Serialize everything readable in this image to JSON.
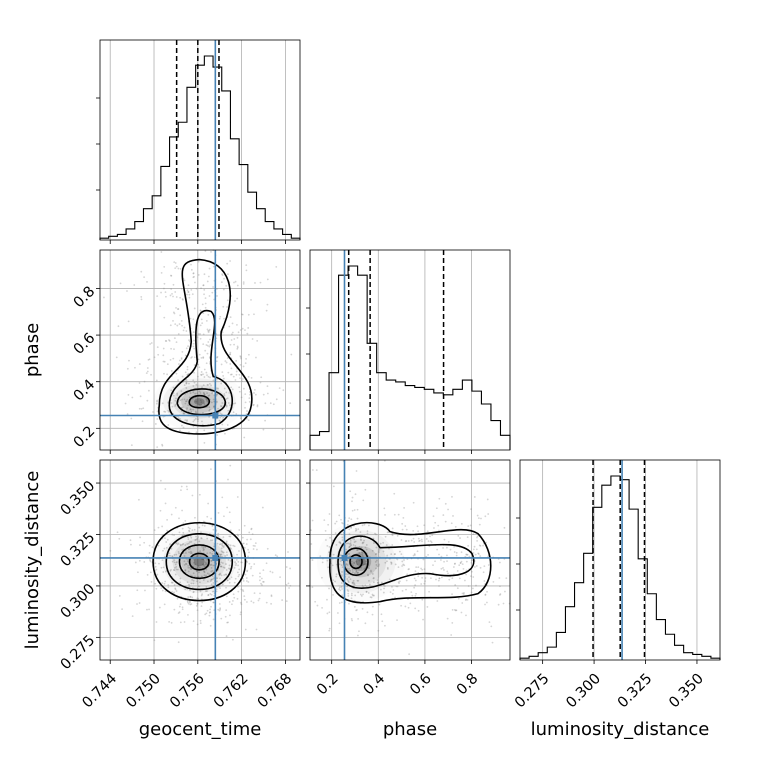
{
  "chart_data": {
    "type": "corner",
    "parameters": [
      "geocent_time",
      "phase",
      "luminosity_distance"
    ],
    "axis_labels": {
      "geocent_time": "geocent_time",
      "phase": "phase",
      "luminosity_distance": "luminosity_distance"
    },
    "ranges": {
      "geocent_time": [
        0.7426,
        0.77
      ],
      "phase": [
        0.107,
        0.965
      ],
      "luminosity_distance": [
        0.264,
        0.3612
      ]
    },
    "ticks": {
      "geocent_time": [
        0.744,
        0.75,
        0.756,
        0.762,
        0.768
      ],
      "phase": [
        0.2,
        0.4,
        0.6,
        0.8
      ],
      "luminosity_distance": [
        0.275,
        0.3,
        0.325,
        0.35
      ]
    },
    "tick_labels": {
      "geocent_time": [
        "0.744",
        "0.750",
        "0.756",
        "0.762",
        "0.768"
      ],
      "phase": [
        "0.2",
        "0.4",
        "0.6",
        "0.8"
      ],
      "luminosity_distance": [
        "0.275",
        "0.300",
        "0.325",
        "0.350"
      ]
    },
    "truths": {
      "geocent_time": 0.7584,
      "phase": 0.255,
      "luminosity_distance": 0.3136
    },
    "quantiles": {
      "geocent_time": [
        0.7531,
        0.756,
        0.7589
      ],
      "phase": [
        0.273,
        0.365,
        0.68
      ],
      "luminosity_distance": [
        0.2995,
        0.3127,
        0.3245
      ]
    },
    "histograms": {
      "geocent_time": [
        1,
        2,
        3,
        6,
        10,
        17,
        24,
        40,
        56,
        64,
        83,
        95,
        100,
        94,
        81,
        55,
        41,
        26,
        17,
        10,
        6,
        3,
        1
      ],
      "phase": [
        8,
        10,
        42,
        95,
        100,
        95,
        58,
        42,
        38,
        37,
        35,
        34,
        33,
        31,
        30,
        33,
        38,
        32,
        25,
        16,
        8
      ],
      "luminosity_distance": [
        1,
        2,
        4,
        7,
        15,
        29,
        42,
        58,
        83,
        95,
        100,
        98,
        82,
        55,
        36,
        22,
        14,
        8,
        4,
        3,
        2,
        1
      ]
    },
    "grid": true,
    "line_colors": {
      "truth": "#4682b4",
      "quantile": "#000000",
      "histogram": "#000000"
    }
  }
}
